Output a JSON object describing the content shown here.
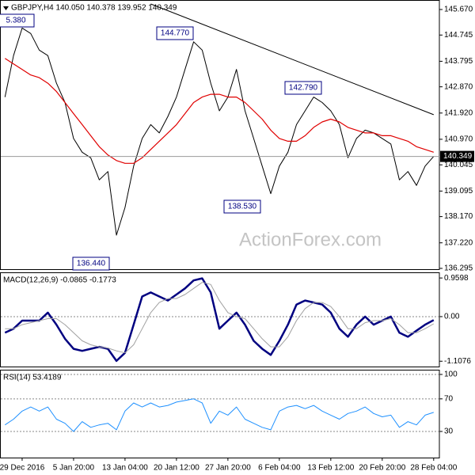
{
  "chart_data": [
    {
      "type": "line",
      "title": "GBPJPY,H4  140.050 140.378 139.952 140.349",
      "categories": [
        null,
        null,
        "29 Dec 2016",
        null,
        null,
        null,
        null,
        null,
        "5 Jan 20:00",
        null,
        null,
        null,
        null,
        null,
        "13 Jan 04:00",
        null,
        null,
        null,
        null,
        null,
        "20 Jan 12:00",
        null,
        null,
        null,
        null,
        null,
        "27 Jan 20:00",
        null,
        null,
        null,
        null,
        null,
        "6 Feb 04:00",
        null,
        null,
        null,
        null,
        null,
        "13 Feb 12:00",
        null,
        null,
        null,
        null,
        null,
        "20 Feb 20:00",
        null,
        null,
        null,
        null,
        null,
        "28 Feb 04:00"
      ],
      "series": [
        {
          "color": "#000000",
          "values": [
            142.5,
            144.0,
            145.0,
            144.8,
            144.2,
            144.0,
            143.0,
            142.3,
            141.0,
            140.5,
            140.3,
            139.5,
            139.8,
            137.5,
            138.5,
            140.0,
            141.0,
            141.5,
            141.2,
            141.8,
            142.5,
            143.5,
            144.5,
            144.2,
            143.0,
            142.0,
            142.5,
            143.5,
            142.0,
            141.0,
            140.0,
            139.0,
            140.0,
            140.5,
            141.5,
            142.0,
            142.5,
            142.3,
            142.0,
            141.5,
            140.3,
            141.0,
            141.3,
            141.2,
            141.0,
            140.8,
            139.5,
            139.8,
            139.3,
            140.0,
            140.349
          ]
        },
        {
          "color": "#e00000",
          "values": [
            143.9,
            143.7,
            143.5,
            143.3,
            143.2,
            143.0,
            142.7,
            142.3,
            141.9,
            141.5,
            141.1,
            140.7,
            140.4,
            140.2,
            140.1,
            140.1,
            140.3,
            140.6,
            140.9,
            141.2,
            141.5,
            141.9,
            142.3,
            142.5,
            142.6,
            142.6,
            142.5,
            142.5,
            142.3,
            142.0,
            141.7,
            141.3,
            141.0,
            140.9,
            140.9,
            141.1,
            141.4,
            141.6,
            141.7,
            141.6,
            141.4,
            141.3,
            141.2,
            141.2,
            141.1,
            141.1,
            141.0,
            140.9,
            140.7,
            140.6,
            140.5
          ]
        }
      ],
      "trendline": {
        "color": "#000000",
        "start": 145.87,
        "end": 141.86
      },
      "ylim": [
        136.266,
        146.014
      ],
      "yticks": [
        {
          "value": 145.67,
          "label": "145.670"
        },
        {
          "value": 144.745,
          "label": "144.745"
        },
        {
          "value": 143.795,
          "label": "143.795"
        },
        {
          "value": 142.87,
          "label": "142.870"
        },
        {
          "value": 141.92,
          "label": "141.920"
        },
        {
          "value": 140.97,
          "label": "140.970"
        },
        {
          "value": 140.045,
          "label": "140.045"
        },
        {
          "value": 139.095,
          "label": "139.095"
        },
        {
          "value": 138.17,
          "label": "138.170"
        },
        {
          "value": 137.22,
          "label": "137.220"
        },
        {
          "value": 136.295,
          "label": "136.295"
        }
      ],
      "last_price": 140.349,
      "annotations": [
        "5.380",
        "144.770",
        "142.790",
        "138.530",
        "136.440"
      ],
      "watermark": "ActionForex.com",
      "grid": false
    },
    {
      "type": "line",
      "title": "MACD(12,26,9) -0.0865 -0.1773",
      "series": [
        {
          "color": "#000080",
          "values": [
            -0.4,
            -0.3,
            -0.1,
            -0.1,
            -0.1,
            0.1,
            -0.2,
            -0.55,
            -0.8,
            -0.85,
            -0.8,
            -0.75,
            -0.8,
            -1.1,
            -0.9,
            -0.2,
            0.5,
            0.6,
            0.5,
            0.4,
            0.55,
            0.7,
            0.9,
            0.95,
            0.6,
            -0.3,
            -0.1,
            0.1,
            -0.2,
            -0.6,
            -0.8,
            -0.95,
            -0.6,
            -0.2,
            0.3,
            0.4,
            0.35,
            0.3,
            0.1,
            -0.3,
            -0.5,
            -0.2,
            0.0,
            -0.2,
            -0.1,
            0.0,
            -0.4,
            -0.5,
            -0.35,
            -0.2,
            -0.0865
          ]
        },
        {
          "color": "#a0a0a0",
          "values": [
            -0.3,
            -0.3,
            -0.2,
            -0.15,
            -0.1,
            -0.05,
            -0.05,
            -0.2,
            -0.4,
            -0.6,
            -0.7,
            -0.75,
            -0.78,
            -0.85,
            -0.9,
            -0.7,
            -0.3,
            0.1,
            0.35,
            0.45,
            0.45,
            0.55,
            0.7,
            0.85,
            0.8,
            0.4,
            0.1,
            0.0,
            -0.05,
            -0.3,
            -0.55,
            -0.75,
            -0.75,
            -0.5,
            -0.1,
            0.2,
            0.35,
            0.35,
            0.25,
            0.0,
            -0.3,
            -0.3,
            -0.15,
            -0.1,
            -0.1,
            -0.05,
            -0.2,
            -0.4,
            -0.4,
            -0.3,
            -0.1773
          ]
        }
      ],
      "ylim": [
        -1.24,
        1.1
      ],
      "yticks": [
        0.9598,
        {
          "value": 0,
          "label": "0.00"
        },
        -1.1076
      ],
      "grid": false
    },
    {
      "type": "line",
      "title": "RSI(14) 53.4189",
      "series": [
        {
          "color": "#1e90ff",
          "values": [
            38,
            45,
            55,
            60,
            55,
            60,
            45,
            40,
            30,
            42,
            35,
            38,
            40,
            32,
            55,
            65,
            60,
            65,
            60,
            62,
            66,
            68,
            70,
            65,
            40,
            55,
            50,
            60,
            45,
            40,
            35,
            32,
            55,
            60,
            62,
            58,
            62,
            55,
            50,
            45,
            52,
            55,
            60,
            52,
            48,
            50,
            35,
            42,
            38,
            50,
            53.4189
          ]
        }
      ],
      "ylim": [
        -2.1,
        105.8
      ],
      "yticks": [
        100,
        70,
        30
      ],
      "grid": true
    }
  ]
}
